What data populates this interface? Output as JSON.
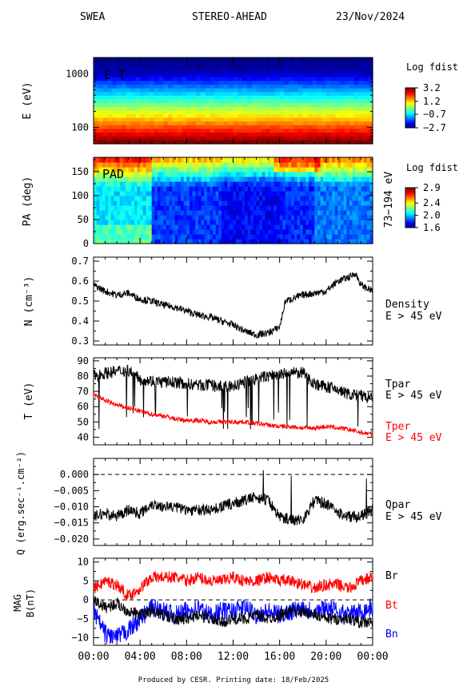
{
  "header": {
    "instrument": "SWEA",
    "spacecraft": "STEREO-AHEAD",
    "date": "23/Nov/2024"
  },
  "footer": "Produced by CESR.   Printing date: 18/Feb/2025",
  "colors": {
    "tpar": "#000000",
    "tper": "#ff0000",
    "br": "#000000",
    "bt": "#ff0000",
    "bn": "#0000ff"
  },
  "chart_data": [
    {
      "type": "heatmap",
      "panel": "energy-time",
      "inner_label": "E-T",
      "ylabel": "E (eV)",
      "yscale": "log",
      "ylim": [
        50,
        2000
      ],
      "yticks": [
        100,
        1000
      ],
      "ytick_labels": [
        "100",
        "1000"
      ],
      "colorbar": {
        "title": "Log fdist",
        "ticks": [
          3.2,
          1.2,
          -0.7,
          -2.7
        ],
        "tick_labels": [
          "3.2",
          "1.2",
          "−0.7",
          "−2.7"
        ],
        "range": [
          -2.7,
          3.2
        ]
      },
      "energy_levels": [
        55,
        65,
        76,
        89,
        104,
        122,
        143,
        167,
        196,
        229,
        268,
        314,
        368,
        431,
        504,
        590,
        691,
        809,
        947,
        1108,
        1297,
        1519,
        1778
      ],
      "log_fdist": [
        3.2,
        2.9,
        2.6,
        2.3,
        2.0,
        1.7,
        1.4,
        1.1,
        0.8,
        0.5,
        0.2,
        -0.1,
        -0.4,
        -0.7,
        -1.0,
        -1.3,
        -1.6,
        -1.9,
        -2.2,
        -2.4,
        -2.5,
        -2.6,
        -2.7
      ]
    },
    {
      "type": "heatmap",
      "panel": "pitch-angle",
      "inner_label": "PAD",
      "ylabel": "PA (deg)",
      "ylim": [
        0,
        180
      ],
      "yticks": [
        0,
        50,
        100,
        150
      ],
      "ytick_labels": [
        "0",
        "50",
        "100",
        "150"
      ],
      "right_label": "73−194 eV",
      "colorbar": {
        "title": "Log fdist",
        "ticks": [
          2.9,
          2.4,
          2.0,
          1.6
        ],
        "tick_labels": [
          "2.9",
          "2.4",
          "2.0",
          "1.6"
        ],
        "range": [
          1.6,
          2.9
        ]
      }
    },
    {
      "type": "line",
      "panel": "density",
      "ylabel": "N (cm⁻³)",
      "ylim": [
        0.28,
        0.72
      ],
      "yticks": [
        0.3,
        0.4,
        0.5,
        0.6,
        0.7
      ],
      "ytick_labels": [
        "0.3",
        "0.4",
        "0.5",
        "0.6",
        "0.7"
      ],
      "right_labels": [
        "Density",
        "E > 45 eV"
      ],
      "series": [
        {
          "name": "Density",
          "x": [
            0,
            1,
            2,
            3,
            4,
            5,
            6,
            7,
            8,
            9,
            10,
            11,
            12,
            13,
            14,
            15,
            16,
            16.5,
            17,
            18,
            19,
            20,
            21,
            22,
            22.5,
            23,
            24
          ],
          "y": [
            0.58,
            0.55,
            0.53,
            0.54,
            0.51,
            0.5,
            0.48,
            0.47,
            0.45,
            0.43,
            0.42,
            0.4,
            0.38,
            0.35,
            0.33,
            0.34,
            0.37,
            0.5,
            0.51,
            0.53,
            0.54,
            0.55,
            0.6,
            0.62,
            0.64,
            0.58,
            0.55
          ]
        }
      ]
    },
    {
      "type": "line",
      "panel": "temperature",
      "ylabel": "T (eV)",
      "ylim": [
        35,
        92
      ],
      "yticks": [
        40,
        50,
        60,
        70,
        80,
        90
      ],
      "ytick_labels": [
        "40",
        "50",
        "60",
        "70",
        "80",
        "90"
      ],
      "right_labels": [
        "Tpar",
        "E > 45 eV",
        "Tper",
        "E > 45 eV"
      ],
      "series": [
        {
          "name": "Tpar",
          "x": [
            0,
            1,
            2,
            3,
            4,
            5,
            6,
            7,
            8,
            9,
            10,
            11,
            12,
            13,
            14,
            15,
            16,
            17,
            18,
            19,
            20,
            21,
            22,
            23,
            24
          ],
          "y": [
            80,
            82,
            83,
            84,
            78,
            77,
            76,
            76,
            75,
            74,
            74,
            73,
            73,
            76,
            78,
            80,
            81,
            82,
            82,
            75,
            73,
            71,
            68,
            67,
            65
          ]
        },
        {
          "name": "Tper",
          "x": [
            0,
            1,
            2,
            3,
            4,
            5,
            6,
            7,
            8,
            9,
            10,
            11,
            12,
            13,
            14,
            15,
            16,
            17,
            18,
            19,
            20,
            21,
            22,
            23,
            24
          ],
          "y": [
            68,
            64,
            61,
            59,
            57,
            55,
            54,
            52,
            51,
            51,
            50,
            50,
            50,
            50,
            49,
            48,
            47,
            47,
            46,
            46,
            47,
            46,
            45,
            43,
            42
          ]
        }
      ]
    },
    {
      "type": "line",
      "panel": "heat-flux",
      "ylabel": "Q (erg.sec⁻¹.cm⁻²)",
      "ylim": [
        -0.022,
        0.005
      ],
      "yticks": [
        0.0,
        -0.005,
        -0.01,
        -0.015,
        -0.02
      ],
      "ytick_labels": [
        "0.000",
        "−0.005",
        "−0.010",
        "−0.015",
        "−0.020"
      ],
      "right_labels": [
        "Qpar",
        "E > 45 eV"
      ],
      "series": [
        {
          "name": "Qpar",
          "x": [
            0,
            1,
            2,
            3,
            4,
            5,
            6,
            7,
            8,
            9,
            10,
            11,
            12,
            13,
            14,
            15,
            16,
            17,
            18,
            19,
            20,
            21,
            22,
            23,
            24
          ],
          "y": [
            -0.013,
            -0.012,
            -0.013,
            -0.011,
            -0.012,
            -0.009,
            -0.01,
            -0.01,
            -0.011,
            -0.011,
            -0.011,
            -0.01,
            -0.009,
            -0.008,
            -0.007,
            -0.008,
            -0.013,
            -0.014,
            -0.014,
            -0.008,
            -0.009,
            -0.012,
            -0.013,
            -0.013,
            -0.011
          ]
        }
      ]
    },
    {
      "type": "line",
      "panel": "magnetic-field",
      "ylabel": "MAG B(nT)",
      "ylim": [
        -12,
        11
      ],
      "yticks": [
        10,
        5,
        0,
        -5,
        -10
      ],
      "ytick_labels": [
        "10",
        "5",
        "0",
        "−5",
        "−10"
      ],
      "right_labels": [
        "Br",
        "Bt",
        "Bn"
      ],
      "xticks": [
        0,
        4,
        8,
        12,
        16,
        20,
        24
      ],
      "xtick_labels": [
        "00:00",
        "04:00",
        "08:00",
        "12:00",
        "16:00",
        "20:00",
        "00:00"
      ],
      "series": [
        {
          "name": "Br",
          "x": [
            0,
            1,
            2,
            3,
            4,
            5,
            6,
            7,
            8,
            9,
            10,
            11,
            12,
            13,
            14,
            15,
            16,
            17,
            18,
            19,
            20,
            21,
            22,
            23,
            24
          ],
          "y": [
            0,
            -2,
            -1,
            -3,
            -4,
            -3,
            -4,
            -5,
            -5,
            -4,
            -5,
            -6,
            -5,
            -5,
            -4,
            -5,
            -4,
            -3,
            -3,
            -4,
            -5,
            -5,
            -5,
            -6,
            -6
          ]
        },
        {
          "name": "Bt",
          "x": [
            0,
            1,
            2,
            3,
            4,
            5,
            6,
            7,
            8,
            9,
            10,
            11,
            12,
            13,
            14,
            15,
            16,
            17,
            18,
            19,
            20,
            21,
            22,
            23,
            24
          ],
          "y": [
            3,
            5,
            4,
            1,
            3,
            6,
            6,
            6,
            5,
            6,
            5,
            5,
            6,
            5,
            5,
            6,
            5,
            5,
            4,
            3,
            4,
            4,
            3,
            5,
            6
          ]
        },
        {
          "name": "Bn",
          "x": [
            0,
            1,
            2,
            3,
            4,
            5,
            6,
            7,
            8,
            9,
            10,
            11,
            12,
            13,
            14,
            15,
            16,
            17,
            18,
            19,
            20,
            21,
            22,
            23,
            24
          ],
          "y": [
            -3,
            -9,
            -10,
            -8,
            -5,
            -2,
            -3,
            -4,
            -3,
            -2,
            -4,
            -3,
            -3,
            -2,
            -4,
            -3,
            -4,
            -3,
            -2,
            -3,
            -2,
            -3,
            -4,
            -3,
            -2
          ]
        }
      ]
    }
  ]
}
